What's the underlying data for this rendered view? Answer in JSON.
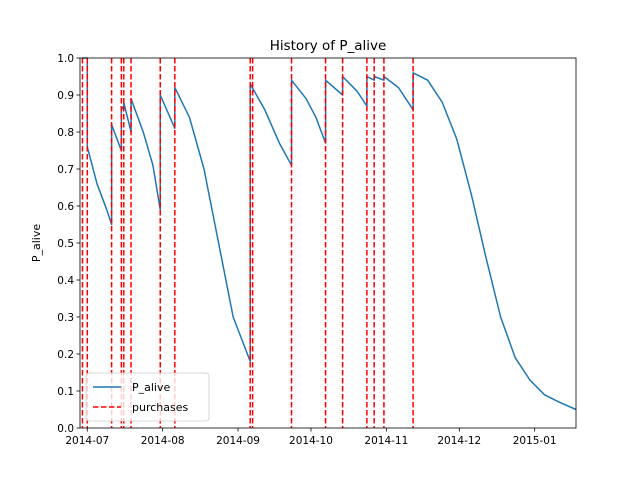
{
  "chart_data": {
    "type": "line",
    "title": "History of P_alive",
    "xlabel": "",
    "ylabel": "P_alive",
    "xlim": [
      "2014-06-28",
      "2015-01-18"
    ],
    "ylim": [
      0,
      1
    ],
    "x_ticks": [
      "2014-07-01",
      "2014-08-01",
      "2014-09-01",
      "2014-10-01",
      "2014-11-01",
      "2014-12-01",
      "2015-01-01"
    ],
    "x_tick_labels": [
      "2014-07",
      "2014-08",
      "2014-09",
      "2014-10",
      "2014-11",
      "2014-12",
      "2015-01"
    ],
    "y_ticks": [
      0.0,
      0.1,
      0.2,
      0.3,
      0.4,
      0.5,
      0.6,
      0.7,
      0.8,
      0.9,
      1.0
    ],
    "y_tick_labels": [
      "0.0",
      "0.1",
      "0.2",
      "0.3",
      "0.4",
      "0.5",
      "0.6",
      "0.7",
      "0.8",
      "0.9",
      "1.0"
    ],
    "grid": false,
    "legend": {
      "placement": "lower-left",
      "entries": [
        "P_alive",
        "purchases"
      ]
    },
    "series": [
      {
        "name": "P_alive",
        "color": "#1f77b4",
        "style": "solid",
        "points": [
          [
            "2014-06-29",
            1.0
          ],
          [
            "2014-07-01",
            1.0
          ],
          [
            "2014-07-01",
            0.76
          ],
          [
            "2014-07-05",
            0.66
          ],
          [
            "2014-07-09",
            0.59
          ],
          [
            "2014-07-11",
            0.55
          ],
          [
            "2014-07-11",
            0.82
          ],
          [
            "2014-07-15",
            0.75
          ],
          [
            "2014-07-15",
            0.86
          ],
          [
            "2014-07-16",
            0.87
          ],
          [
            "2014-07-16",
            0.88
          ],
          [
            "2014-07-19",
            0.8
          ],
          [
            "2014-07-19",
            0.89
          ],
          [
            "2014-07-24",
            0.8
          ],
          [
            "2014-07-28",
            0.71
          ],
          [
            "2014-07-31",
            0.59
          ],
          [
            "2014-07-31",
            0.9
          ],
          [
            "2014-08-06",
            0.81
          ],
          [
            "2014-08-06",
            0.92
          ],
          [
            "2014-08-12",
            0.84
          ],
          [
            "2014-08-18",
            0.7
          ],
          [
            "2014-08-24",
            0.5
          ],
          [
            "2014-08-30",
            0.3
          ],
          [
            "2014-09-06",
            0.18
          ],
          [
            "2014-09-06",
            0.93
          ],
          [
            "2014-09-12",
            0.86
          ],
          [
            "2014-09-18",
            0.77
          ],
          [
            "2014-09-23",
            0.71
          ],
          [
            "2014-09-23",
            0.94
          ],
          [
            "2014-09-29",
            0.89
          ],
          [
            "2014-10-03",
            0.84
          ],
          [
            "2014-10-07",
            0.77
          ],
          [
            "2014-10-07",
            0.94
          ],
          [
            "2014-10-14",
            0.9
          ],
          [
            "2014-10-14",
            0.95
          ],
          [
            "2014-10-20",
            0.91
          ],
          [
            "2014-10-24",
            0.87
          ],
          [
            "2014-10-24",
            0.95
          ],
          [
            "2014-10-27",
            0.94
          ],
          [
            "2014-10-27",
            0.95
          ],
          [
            "2014-10-31",
            0.94
          ],
          [
            "2014-10-31",
            0.95
          ],
          [
            "2014-11-06",
            0.92
          ],
          [
            "2014-11-12",
            0.86
          ],
          [
            "2014-11-12",
            0.96
          ],
          [
            "2014-11-18",
            0.94
          ],
          [
            "2014-11-24",
            0.88
          ],
          [
            "2014-11-30",
            0.78
          ],
          [
            "2014-12-06",
            0.63
          ],
          [
            "2014-12-12",
            0.46
          ],
          [
            "2014-12-18",
            0.3
          ],
          [
            "2014-12-24",
            0.19
          ],
          [
            "2014-12-30",
            0.13
          ],
          [
            "2015-01-05",
            0.09
          ],
          [
            "2015-01-11",
            0.07
          ],
          [
            "2015-01-18",
            0.05
          ]
        ]
      },
      {
        "name": "purchases",
        "color": "#ff0000",
        "style": "dashed",
        "dates": [
          "2014-06-29",
          "2014-07-01",
          "2014-07-11",
          "2014-07-15",
          "2014-07-16",
          "2014-07-19",
          "2014-07-31",
          "2014-08-06",
          "2014-09-06",
          "2014-09-07",
          "2014-09-23",
          "2014-10-07",
          "2014-10-14",
          "2014-10-24",
          "2014-10-27",
          "2014-10-31",
          "2014-11-12"
        ]
      }
    ]
  }
}
